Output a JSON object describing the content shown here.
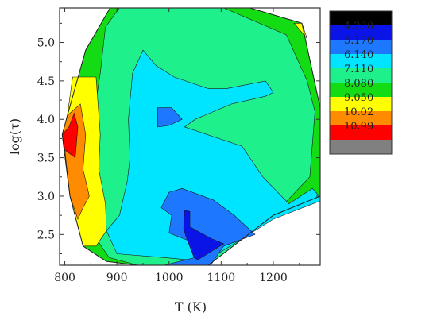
{
  "chart_data": {
    "type": "contour",
    "xlabel": "T (K)",
    "ylabel": "log(τ)",
    "xlim": [
      790,
      1290
    ],
    "ylim": [
      2.1,
      5.45
    ],
    "x_ticks": [
      800,
      900,
      1000,
      1100,
      1200
    ],
    "y_ticks": [
      2.5,
      3.0,
      3.5,
      4.0,
      4.5,
      5.0
    ],
    "x_tick_labels": [
      "800",
      "900",
      "1000",
      "1100",
      "1200"
    ],
    "y_tick_labels": [
      "2.5",
      "3.0",
      "3.5",
      "4.0",
      "4.5",
      "5.0"
    ],
    "legend": {
      "placement": "right",
      "labels": [
        "4.200",
        "5.170",
        "6.140",
        "7.110",
        "8.080",
        "9.050",
        "10.02",
        "10.99"
      ],
      "colors": [
        "#000000",
        "#0a14e6",
        "#1e78ff",
        "#00e5ff",
        "#1ef08c",
        "#14dc14",
        "#ffff00",
        "#ff8c00",
        "#ff0000",
        "#808080"
      ]
    },
    "regions": [
      {
        "color": "#14dc14",
        "points": [
          [
            887,
            5.45
          ],
          [
            1155,
            5.45
          ],
          [
            1255,
            5.25
          ],
          [
            1290,
            4.15
          ],
          [
            1290,
            3.0
          ],
          [
            1200,
            2.75
          ],
          [
            1075,
            2.1
          ],
          [
            940,
            2.1
          ],
          [
            880,
            2.15
          ],
          [
            835,
            2.35
          ],
          [
            810,
            3.0
          ],
          [
            795,
            3.8
          ],
          [
            805,
            4.05
          ],
          [
            840,
            4.9
          ]
        ]
      },
      {
        "color": "#1ef08c",
        "points": [
          [
            905,
            5.45
          ],
          [
            1105,
            5.45
          ],
          [
            1225,
            5.1
          ],
          [
            1265,
            4.5
          ],
          [
            1280,
            4.1
          ],
          [
            1270,
            3.25
          ],
          [
            1200,
            2.75
          ],
          [
            1075,
            2.1
          ],
          [
            940,
            2.1
          ],
          [
            885,
            2.2
          ],
          [
            850,
            2.55
          ],
          [
            840,
            3.0
          ],
          [
            850,
            3.8
          ],
          [
            868,
            4.6
          ],
          [
            878,
            5.2
          ]
        ]
      },
      {
        "color": "#00e5ff",
        "points": [
          [
            950,
            4.9
          ],
          [
            975,
            4.7
          ],
          [
            1010,
            4.55
          ],
          [
            1075,
            4.4
          ],
          [
            1110,
            4.4
          ],
          [
            1185,
            4.5
          ],
          [
            1200,
            4.35
          ],
          [
            1185,
            4.3
          ],
          [
            1120,
            4.2
          ],
          [
            1050,
            4.0
          ],
          [
            1030,
            3.9
          ],
          [
            1140,
            3.65
          ],
          [
            1180,
            3.25
          ],
          [
            1230,
            2.9
          ],
          [
            1275,
            3.1
          ],
          [
            1295,
            2.95
          ],
          [
            1200,
            2.7
          ],
          [
            1070,
            2.15
          ],
          [
            990,
            2.2
          ],
          [
            900,
            2.25
          ],
          [
            880,
            2.55
          ],
          [
            905,
            2.75
          ],
          [
            920,
            3.2
          ],
          [
            925,
            3.5
          ],
          [
            922,
            4.0
          ],
          [
            930,
            4.6
          ]
        ]
      },
      {
        "color": "#1e78ff",
        "points": [
          [
            1025,
            3.1
          ],
          [
            1085,
            2.95
          ],
          [
            1125,
            2.75
          ],
          [
            1165,
            2.5
          ],
          [
            1105,
            2.35
          ],
          [
            1080,
            2.1
          ],
          [
            990,
            2.1
          ],
          [
            1050,
            2.2
          ],
          [
            1045,
            2.4
          ],
          [
            1000,
            2.52
          ],
          [
            1005,
            2.75
          ],
          [
            985,
            2.85
          ],
          [
            1000,
            3.05
          ]
        ]
      },
      {
        "color": "#1e78ff",
        "points": [
          [
            978,
            4.15
          ],
          [
            1005,
            4.15
          ],
          [
            1025,
            4.0
          ],
          [
            1000,
            3.92
          ],
          [
            978,
            3.9
          ]
        ]
      },
      {
        "color": "#0a14e6",
        "points": [
          [
            1030,
            2.82
          ],
          [
            1040,
            2.8
          ],
          [
            1040,
            2.6
          ],
          [
            1080,
            2.45
          ],
          [
            1105,
            2.38
          ],
          [
            1055,
            2.17
          ],
          [
            1048,
            2.2
          ],
          [
            1032,
            2.48
          ],
          [
            1028,
            2.58
          ]
        ]
      },
      {
        "color": "#ffff00",
        "points": [
          [
            815,
            4.55
          ],
          [
            860,
            4.55
          ],
          [
            868,
            3.8
          ],
          [
            865,
            3.35
          ],
          [
            878,
            2.9
          ],
          [
            880,
            2.55
          ],
          [
            860,
            2.35
          ],
          [
            835,
            2.35
          ],
          [
            810,
            3.0
          ],
          [
            795,
            3.8
          ],
          [
            805,
            4.05
          ]
        ]
      },
      {
        "color": "#ff8c00",
        "points": [
          [
            805,
            4.05
          ],
          [
            830,
            4.2
          ],
          [
            840,
            3.8
          ],
          [
            835,
            3.35
          ],
          [
            847,
            3.0
          ],
          [
            835,
            2.85
          ],
          [
            825,
            2.7
          ],
          [
            810,
            3.0
          ],
          [
            800,
            3.6
          ],
          [
            795,
            3.8
          ]
        ]
      },
      {
        "color": "#ff0000",
        "points": [
          [
            795,
            3.8
          ],
          [
            808,
            3.9
          ],
          [
            818,
            4.08
          ],
          [
            825,
            3.9
          ],
          [
            820,
            3.5
          ],
          [
            800,
            3.6
          ]
        ]
      },
      {
        "color": "#ffff00",
        "points": [
          [
            1240,
            5.25
          ],
          [
            1255,
            5.25
          ],
          [
            1265,
            5.05
          ]
        ]
      }
    ]
  }
}
